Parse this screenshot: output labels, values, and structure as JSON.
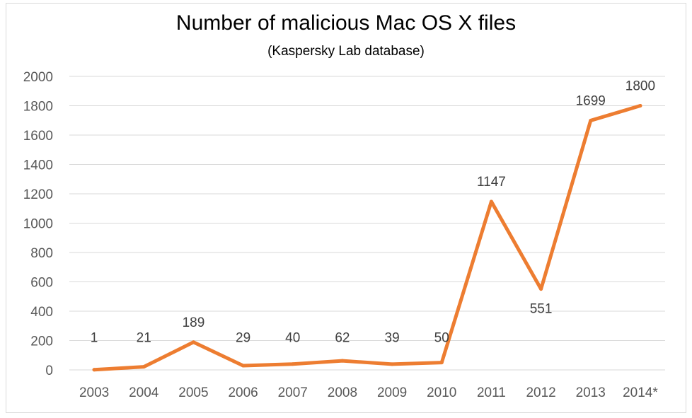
{
  "chart_data": {
    "type": "line",
    "title": "Number of malicious Mac OS X files",
    "subtitle": "(Kaspersky Lab database)",
    "categories": [
      "2003",
      "2004",
      "2005",
      "2006",
      "2007",
      "2008",
      "2009",
      "2010",
      "2011",
      "2012",
      "2013",
      "2014*"
    ],
    "series": [
      {
        "values": [
          1,
          21,
          189,
          29,
          40,
          62,
          39,
          50,
          1147,
          551,
          1699,
          1800
        ],
        "data_labels": [
          "1",
          "21",
          "189",
          "29",
          "40",
          "62",
          "39",
          "50",
          "1147",
          "551",
          "1699",
          "1800"
        ]
      }
    ],
    "ylim": [
      0,
      2000
    ],
    "yticks": [
      "0",
      "200",
      "400",
      "600",
      "800",
      "1000",
      "1200",
      "1400",
      "1600",
      "1800",
      "2000"
    ],
    "grid": true,
    "legend": "none",
    "line_color": "#ED7D31"
  }
}
